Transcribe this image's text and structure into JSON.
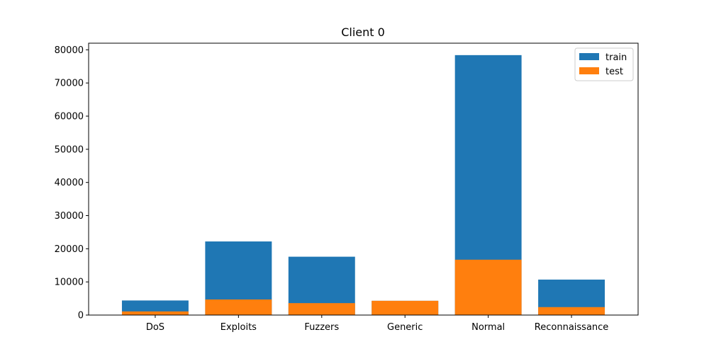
{
  "chart_data": {
    "type": "bar",
    "stacked": "overlay",
    "title": "Client 0",
    "xlabel": "",
    "ylabel": "",
    "categories": [
      "DoS",
      "Exploits",
      "Fuzzers",
      "Generic",
      "Normal",
      "Reconnaissance"
    ],
    "series": [
      {
        "name": "train",
        "color": "#1f77b4",
        "values": [
          4400,
          22200,
          17600,
          4300,
          78400,
          10700
        ]
      },
      {
        "name": "test",
        "color": "#ff7f0e",
        "values": [
          1100,
          4700,
          3600,
          4300,
          16700,
          2400
        ]
      }
    ],
    "ylim": [
      0,
      82000
    ],
    "yticks": [
      0,
      10000,
      20000,
      30000,
      40000,
      50000,
      60000,
      70000,
      80000
    ],
    "grid": false,
    "legend": "top-right"
  }
}
